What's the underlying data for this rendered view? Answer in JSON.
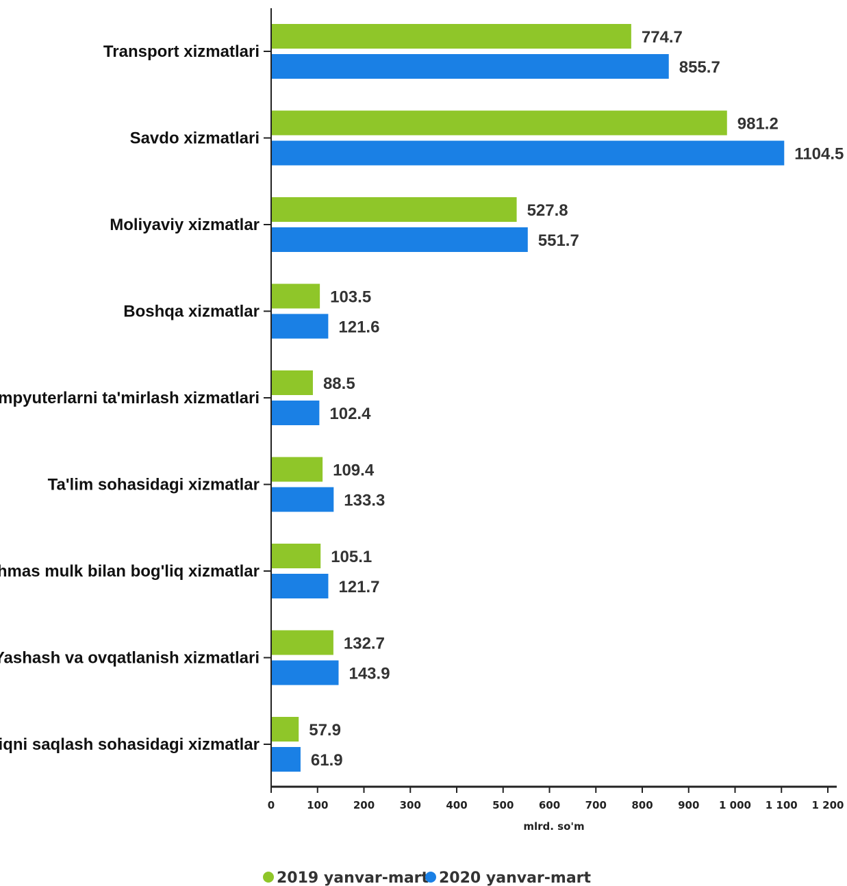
{
  "chart_data": {
    "type": "bar",
    "orientation": "horizontal",
    "categories": [
      "Transport xizmatlari",
      "Savdo xizmatlari",
      "Moliyaviy xizmatlar",
      "Boshqa xizmatlar",
      "Kompyuterlarni ta'mirlash xizmatlari",
      "Ta'lim sohasidagi xizmatlar",
      "Ko'chmas mulk bilan bog'liq xizmatlar",
      "Yashash va ovqatlanish xizmatlari",
      "Sog'liqni saqlash sohasidagi xizmatlar"
    ],
    "series": [
      {
        "name": "2019 yanvar-mart",
        "color": "#8fc629",
        "values": [
          774.7,
          981.2,
          527.8,
          103.5,
          88.5,
          109.4,
          105.1,
          132.7,
          57.9
        ],
        "labels": [
          "774.7",
          "981.2",
          "527.8",
          "103.5",
          "88.5",
          "109.4",
          "105.1",
          "132.7",
          "57.9"
        ]
      },
      {
        "name": "2020 yanvar-mart",
        "color": "#1a80e5",
        "values": [
          855.7,
          1104.5,
          551.7,
          121.6,
          102.4,
          133.3,
          121.7,
          143.9,
          61.9
        ],
        "labels": [
          "855.7",
          "1104.5",
          "551.7",
          "121.6",
          "102.4",
          "133.3",
          "121.7",
          "143.9",
          "61.9"
        ]
      }
    ],
    "xlabel": "mlrd. so'm",
    "xlim": [
      0,
      1200
    ],
    "xticks": [
      "0",
      "100",
      "200",
      "300",
      "400",
      "500",
      "600",
      "700",
      "800",
      "900",
      "1 000",
      "1 100",
      "1 200"
    ],
    "grid": false,
    "legend_position": "bottom-center"
  }
}
